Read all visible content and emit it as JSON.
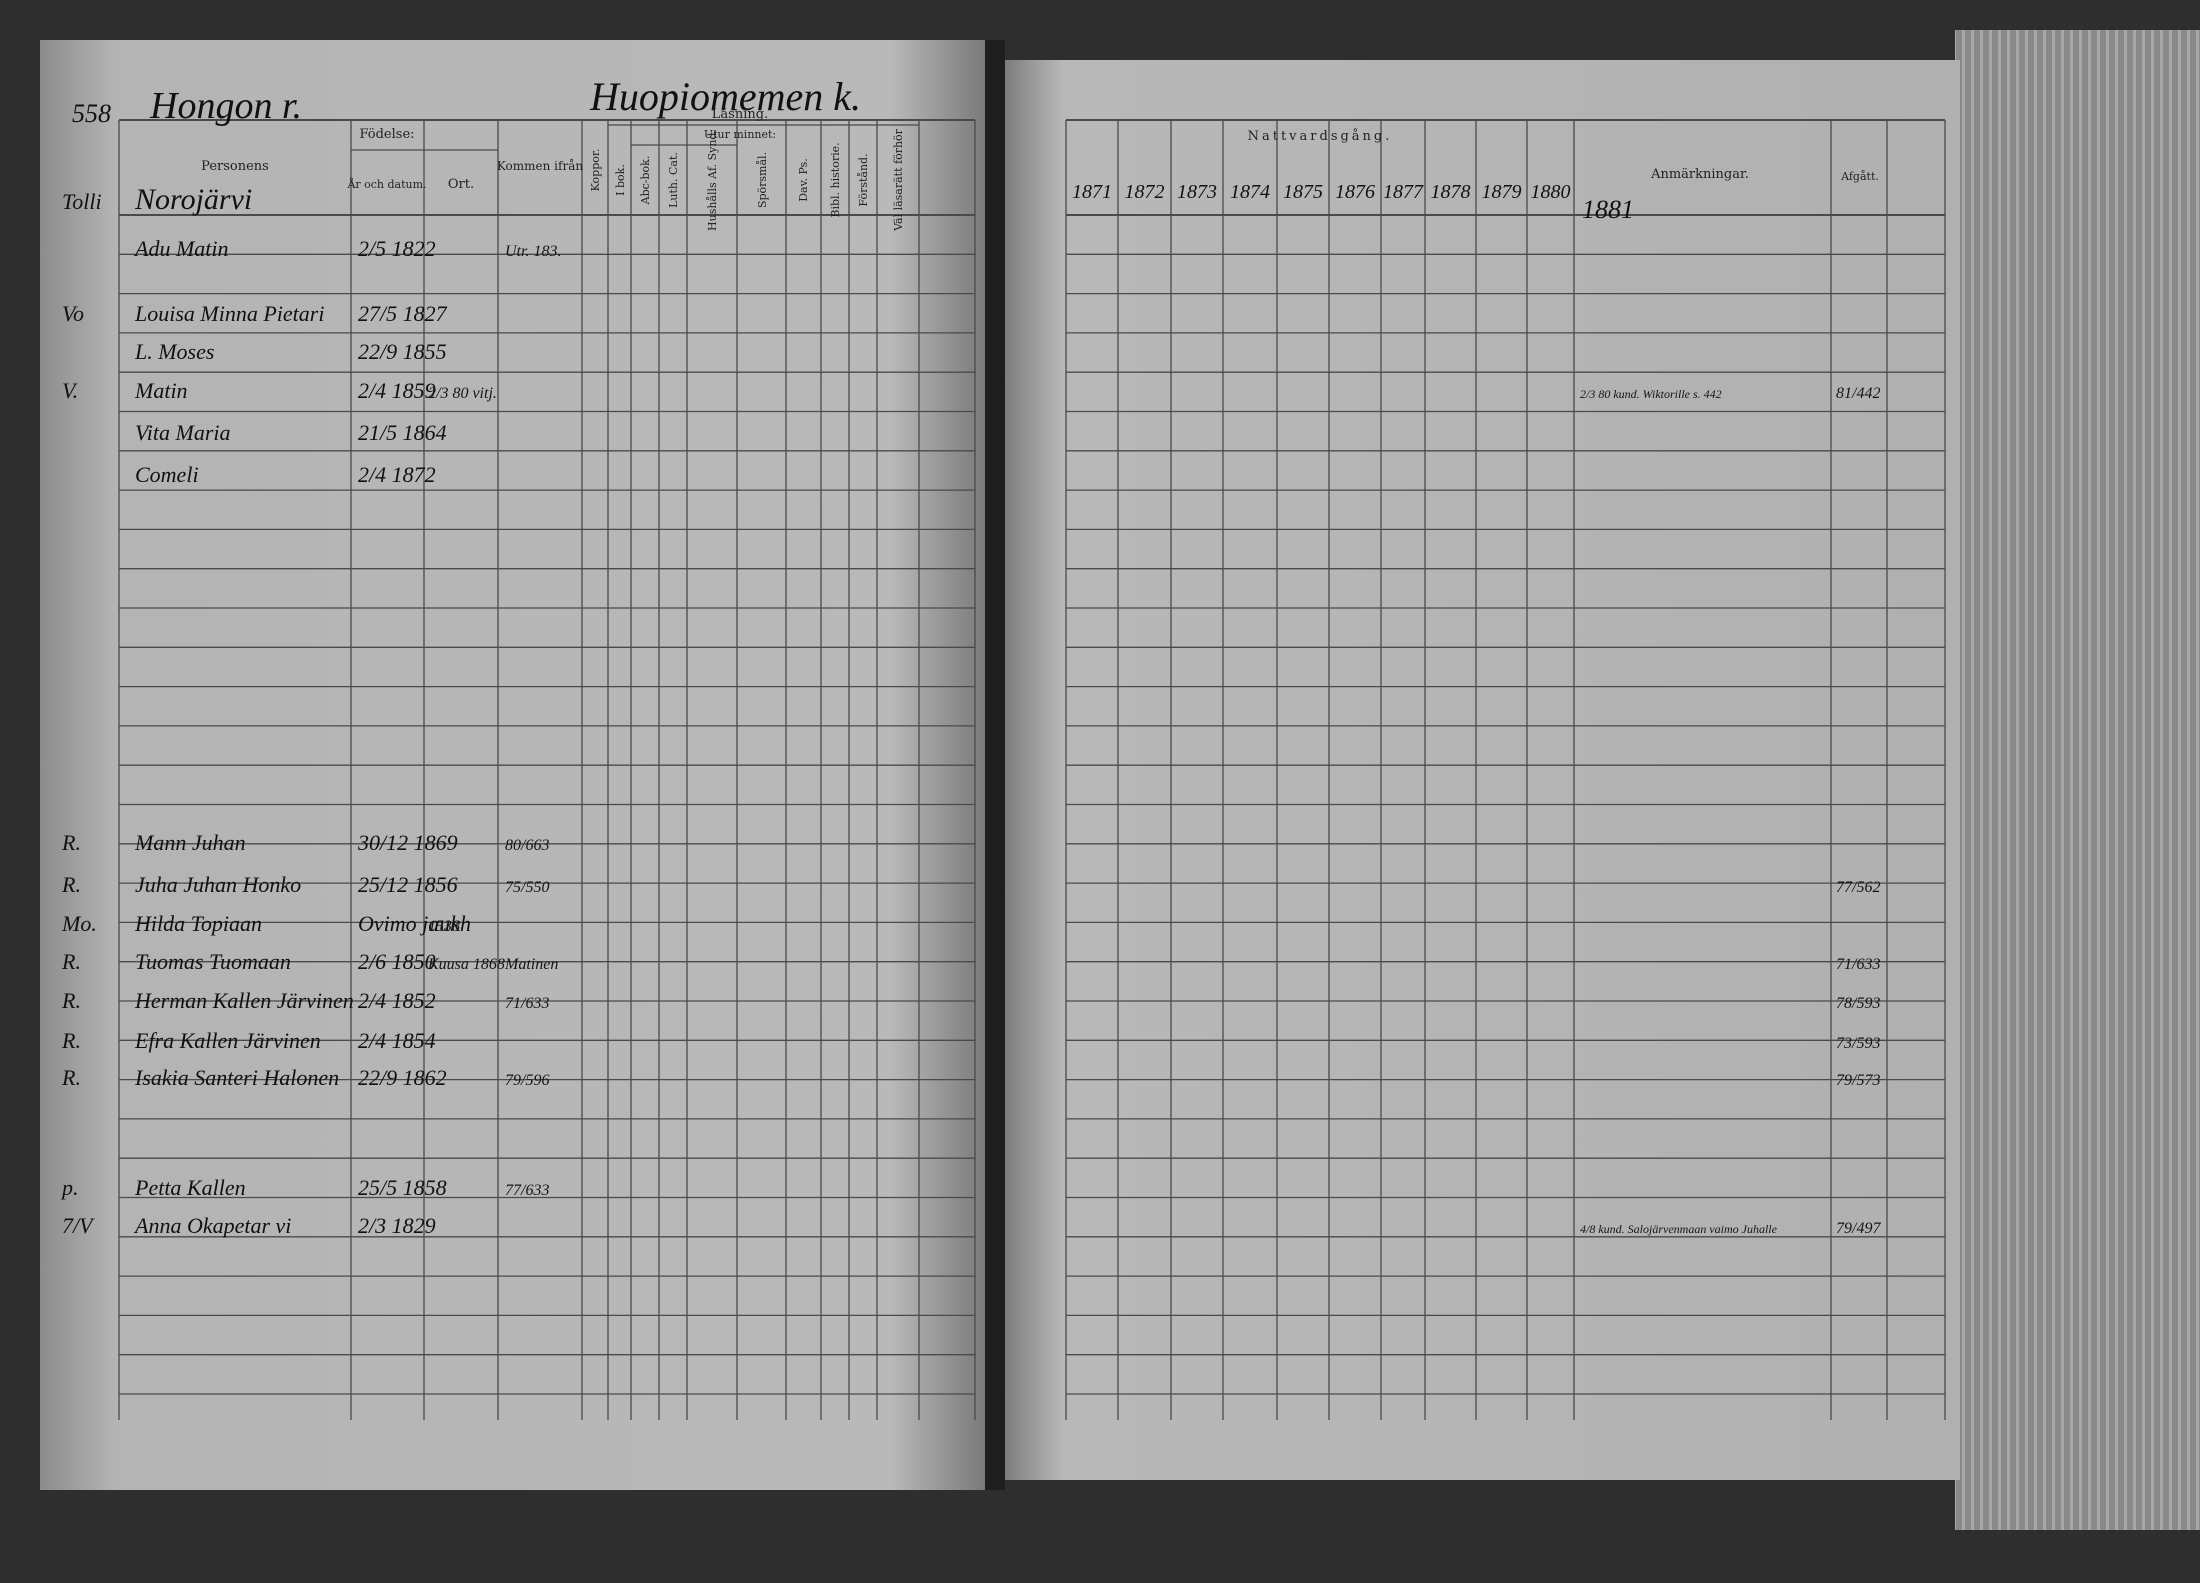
{
  "left_page": {
    "page_number": "558",
    "village": "Hongon r.",
    "farm": "Huopiomemen k.",
    "headers": {
      "name": "Personens",
      "birth": "Födelse:",
      "birth_date": "År och datum.",
      "birth_place": "Ort.",
      "came_from": "Kommen ifrån",
      "smallpox": "Koppor.",
      "reading": "Läsning.",
      "by_heart": "Utur minnet:",
      "in_book": "I bok.",
      "abc_book": "Abc-bok.",
      "catechism": "Luth. Cat.",
      "household": "Hushålls Af. Synd.",
      "questions": "Spörsmål.",
      "psalms": "Dav. Ps.",
      "bible_history": "Bibl. historie.",
      "understanding": "Förstånd.",
      "qualified": "Väl läsarätt förhör"
    }
  },
  "right_page": {
    "header": "Nattvardsgång.",
    "years": [
      "1871",
      "1872",
      "1873",
      "1874",
      "1875",
      "1876",
      "1877",
      "1878",
      "1879",
      "1880"
    ],
    "extra_year": "1881",
    "remarks_header": "Anmärkningar.",
    "departed_header": "Afgått."
  },
  "entries": [
    {
      "mark": "Tolli",
      "name": "Norojärvi"
    },
    {
      "name": "Adu Matin",
      "born": "2/5 1822",
      "from": "Utr. 183."
    },
    {
      "mark": "Vo",
      "name": "Louisa Minna Pietari",
      "born": "27/5 1827"
    },
    {
      "name": "L. Moses",
      "born": "22/9 1855"
    },
    {
      "mark": "V.",
      "name": "Matin",
      "born": "2/4 1859",
      "place": "2/3 80 vitj.",
      "remark": "2/3 80 kund. Wiktorille s. 442",
      "departed": "81/442"
    },
    {
      "name": "Vita Maria",
      "born": "21/5 1864"
    },
    {
      "name": "Comeli",
      "born": "2/4 1872"
    },
    {
      "mark": "R.",
      "name": "Mann Juhan",
      "born": "30/12 1869",
      "from": "80/663"
    },
    {
      "mark": "R.",
      "name": "Juha Juhan Honko",
      "born": "25/12 1856",
      "from": "75/550",
      "departed": "77/562"
    },
    {
      "mark": "Mo.",
      "name": "Hilda Topiaan",
      "born": "Ovimo jaukh",
      "place": "1538"
    },
    {
      "mark": "R.",
      "name": "Tuomas Tuomaan",
      "born": "2/6 1850",
      "place": "Kuusa 1868",
      "from": "Matinen",
      "departed": "71/633"
    },
    {
      "mark": "R.",
      "name": "Herman Kallen Järvinen",
      "born": "2/4 1852",
      "from": "71/633",
      "departed": "78/593"
    },
    {
      "mark": "R.",
      "name": "Efra Kallen Järvinen",
      "born": "2/4 1854",
      "departed": "73/593"
    },
    {
      "mark": "R.",
      "name": "Isakia Santeri Halonen",
      "born": "22/9 1862",
      "from": "79/596",
      "departed": "79/573"
    },
    {
      "mark": "p.",
      "name": "Petta Kallen",
      "born": "25/5 1858",
      "from": "77/633"
    },
    {
      "mark": "7/V",
      "name": "Anna Okapetar vi",
      "born": "2/3 1829",
      "remark": "4/8 kund. Salojärvenmaan vaimo Juhalle",
      "departed": "79/497"
    }
  ]
}
